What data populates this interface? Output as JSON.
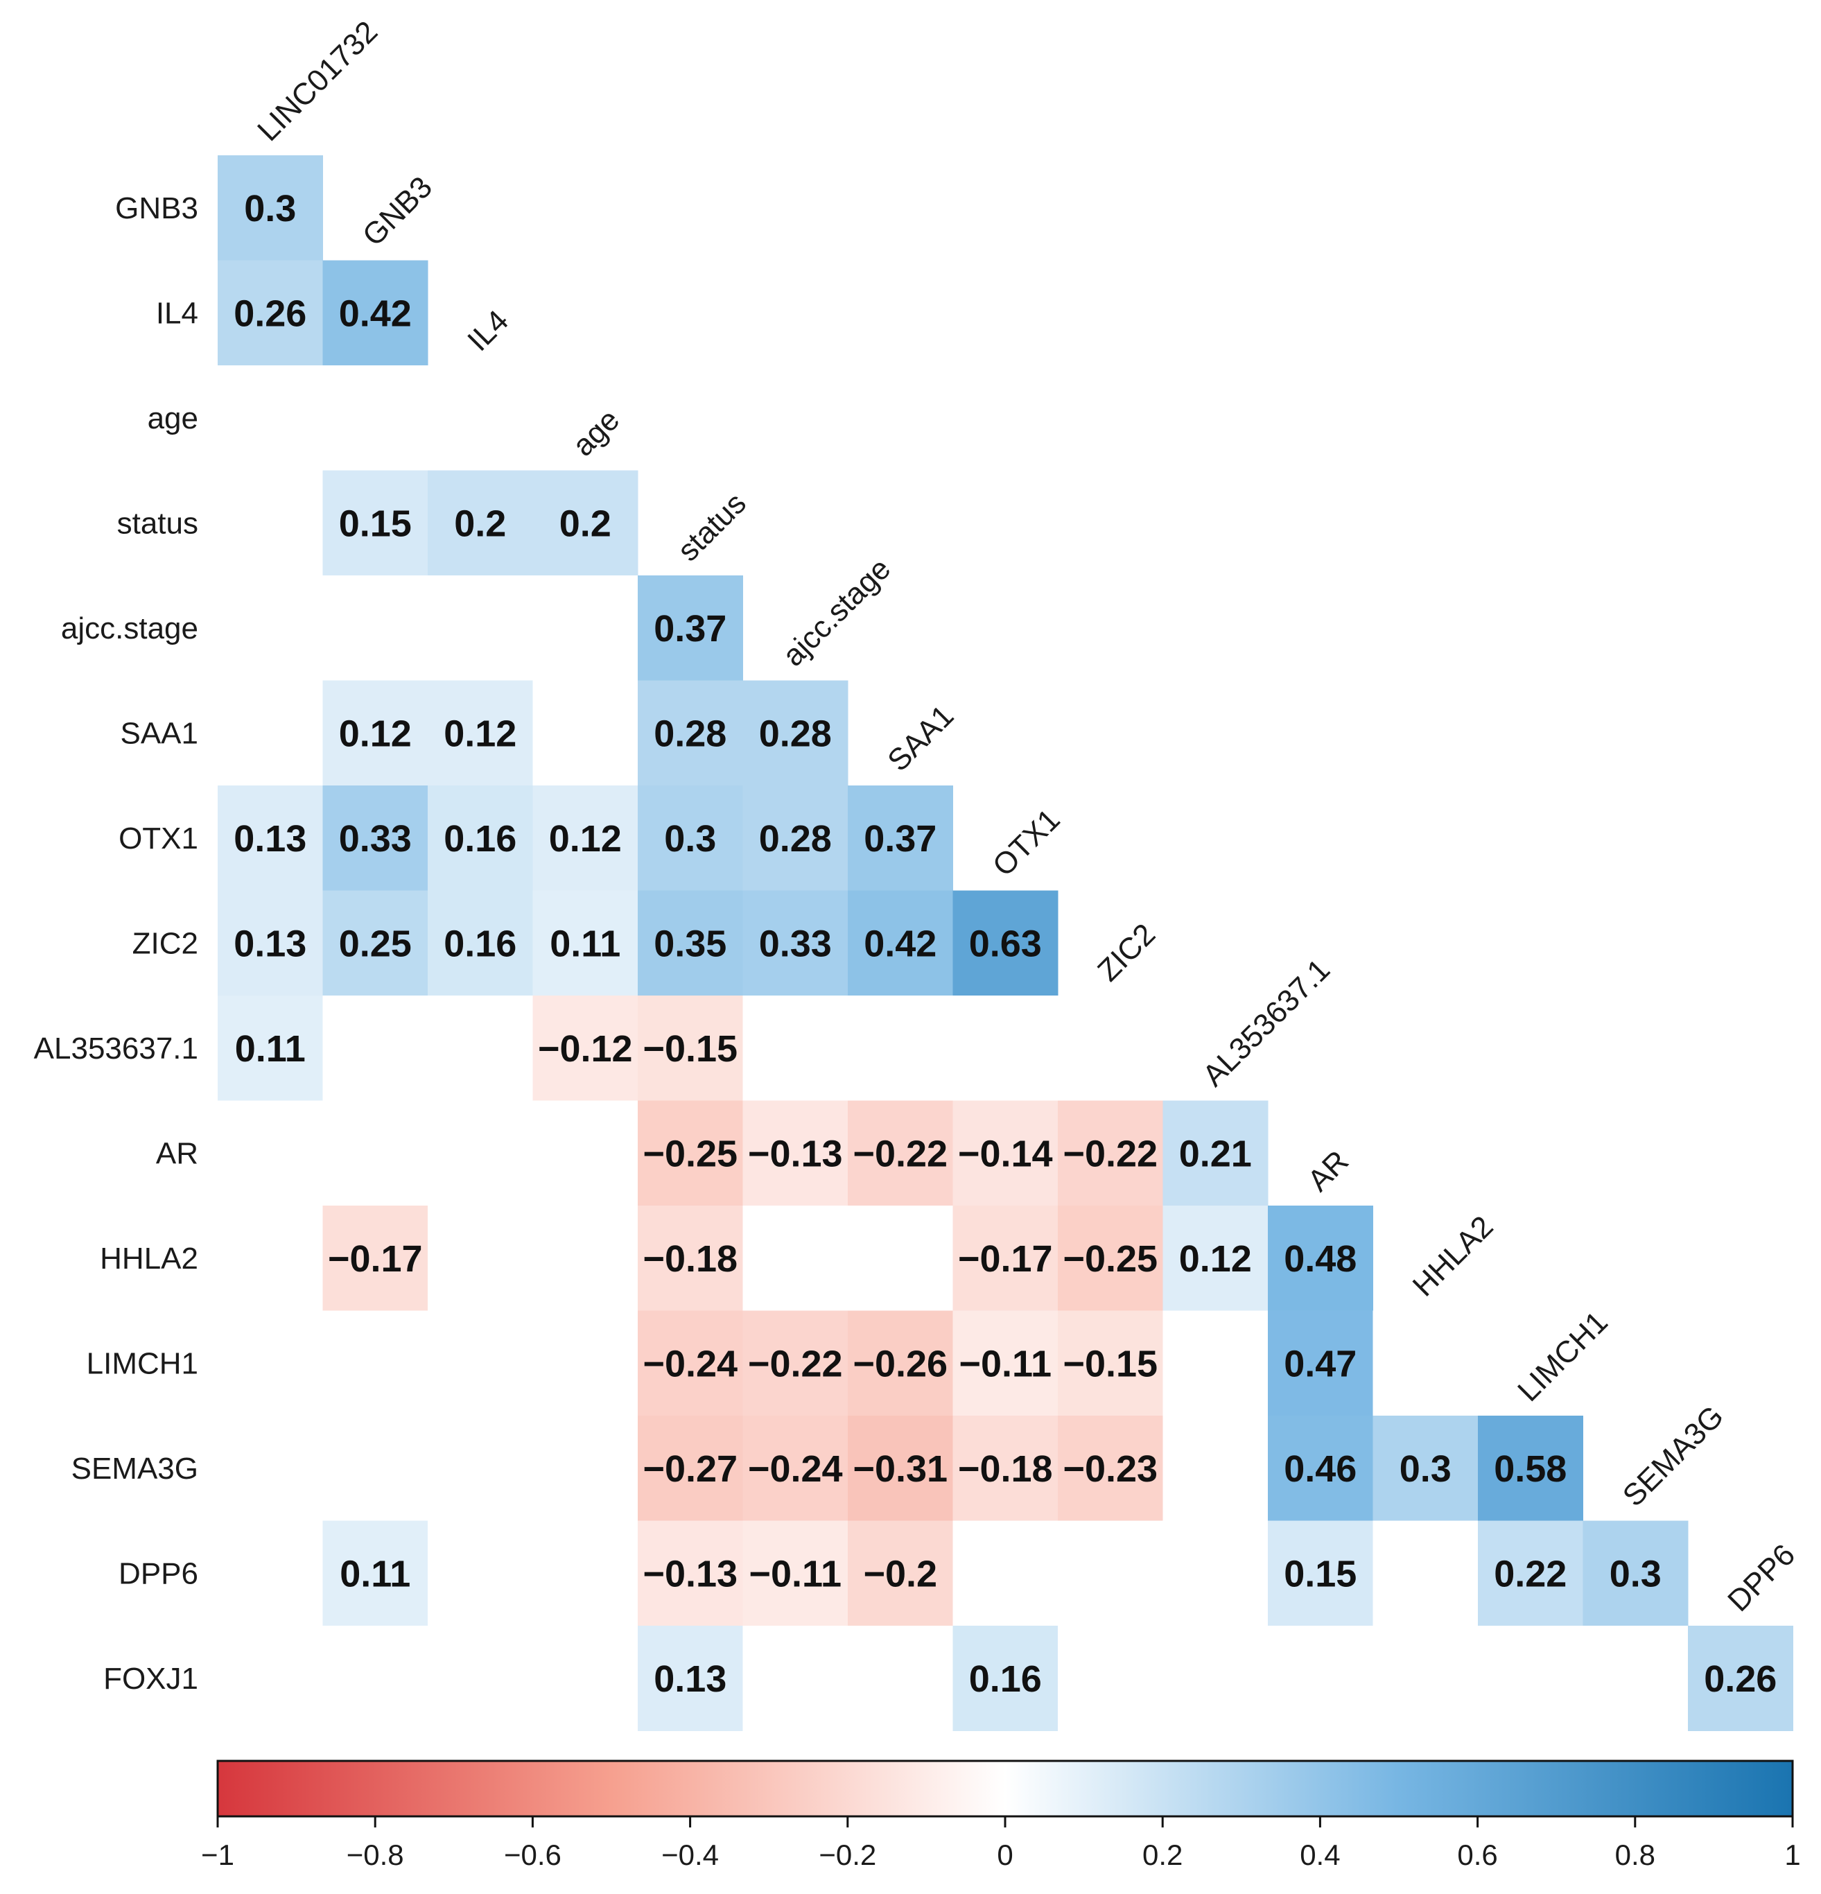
{
  "chart_data": {
    "type": "heatmap",
    "title": "",
    "variables": [
      "LINC01732",
      "GNB3",
      "IL4",
      "age",
      "status",
      "ajcc.stage",
      "SAA1",
      "OTX1",
      "ZIC2",
      "AL353637.1",
      "AR",
      "HHLA2",
      "LIMCH1",
      "SEMA3G",
      "DPP6",
      "FOXJ1"
    ],
    "row_labels": [
      "GNB3",
      "IL4",
      "age",
      "status",
      "ajcc.stage",
      "SAA1",
      "OTX1",
      "ZIC2",
      "AL353637.1",
      "AR",
      "HHLA2",
      "LIMCH1",
      "SEMA3G",
      "DPP6",
      "FOXJ1"
    ],
    "col_labels": [
      "LINC01732",
      "GNB3",
      "IL4",
      "age",
      "status",
      "ajcc.stage",
      "SAA1",
      "OTX1",
      "ZIC2",
      "AL353637.1",
      "AR",
      "HHLA2",
      "LIMCH1",
      "SEMA3G",
      "DPP6"
    ],
    "values": [
      [
        0.3
      ],
      [
        0.26,
        0.42
      ],
      [
        null,
        null,
        null
      ],
      [
        null,
        0.15,
        0.2,
        0.2
      ],
      [
        null,
        null,
        null,
        null,
        0.37
      ],
      [
        null,
        0.12,
        0.12,
        null,
        0.28,
        0.28
      ],
      [
        0.13,
        0.33,
        0.16,
        0.12,
        0.3,
        0.28,
        0.37
      ],
      [
        0.13,
        0.25,
        0.16,
        0.11,
        0.35,
        0.33,
        0.42,
        0.63
      ],
      [
        0.11,
        null,
        null,
        -0.12,
        -0.15,
        null,
        null,
        null,
        null
      ],
      [
        null,
        null,
        null,
        null,
        -0.25,
        -0.13,
        -0.22,
        -0.14,
        -0.22,
        0.21
      ],
      [
        null,
        -0.17,
        null,
        null,
        -0.18,
        null,
        null,
        -0.17,
        -0.25,
        0.12,
        0.48
      ],
      [
        null,
        null,
        null,
        null,
        -0.24,
        -0.22,
        -0.26,
        -0.11,
        -0.15,
        null,
        0.47,
        null
      ],
      [
        null,
        null,
        null,
        null,
        -0.27,
        -0.24,
        -0.31,
        -0.18,
        -0.23,
        null,
        0.46,
        0.3,
        0.58
      ],
      [
        null,
        0.11,
        null,
        null,
        -0.13,
        -0.11,
        -0.2,
        null,
        null,
        null,
        0.15,
        null,
        0.22,
        0.3
      ],
      [
        null,
        null,
        null,
        null,
        0.13,
        null,
        null,
        0.16,
        null,
        null,
        null,
        null,
        null,
        null,
        0.26
      ]
    ],
    "colorbar": {
      "range": [
        -1,
        1
      ],
      "ticks": [
        "−1",
        "−0.8",
        "−0.6",
        "−0.4",
        "−0.2",
        "0",
        "0.2",
        "0.4",
        "0.6",
        "0.8",
        "1"
      ],
      "tick_values": [
        -1,
        -0.8,
        -0.6,
        -0.4,
        -0.2,
        0,
        0.2,
        0.4,
        0.6,
        0.8,
        1
      ],
      "placement": "bottom"
    },
    "colors": {
      "negative": "#d6373d",
      "mid": "#ffffff",
      "positive": "#1a74b0",
      "text": "#111111"
    }
  }
}
